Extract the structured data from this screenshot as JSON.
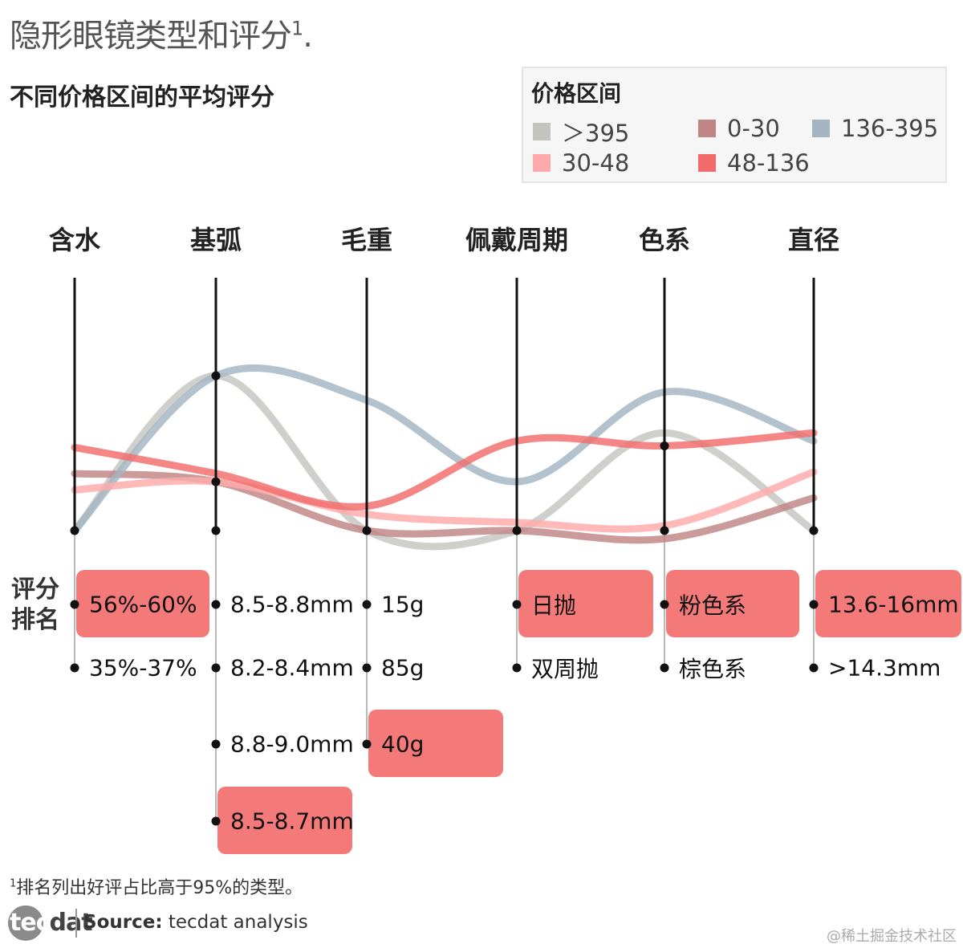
{
  "header": {
    "title": "隐形眼镜类型和评分",
    "title_sup": "1",
    "title_suffix": ".",
    "subtitle": "不同价格区间的平均评分"
  },
  "legend": {
    "title": "价格区间",
    "items": [
      {
        "label": "＞395",
        "color": "#c4c4bf"
      },
      {
        "label": "0-30",
        "color": "#bf8585"
      },
      {
        "label": "136-395",
        "color": "#a4b4c2"
      },
      {
        "label": "30-48",
        "color": "#ffaaaa"
      },
      {
        "label": "48-136",
        "color": "#f26b6b"
      }
    ]
  },
  "rank_label_line1": "评分",
  "rank_label_line2": "排名",
  "chart_data": {
    "type": "line",
    "axes": [
      {
        "name": "含水",
        "categories": [
          {
            "label": "56%-60%",
            "rank": 1,
            "highlight": true
          },
          {
            "label": "35%-37%",
            "rank": 2,
            "highlight": false
          }
        ]
      },
      {
        "name": "基弧",
        "categories": [
          {
            "label": "8.5-8.8mm",
            "rank": 1,
            "highlight": false
          },
          {
            "label": "8.2-8.4mm",
            "rank": 2,
            "highlight": false
          },
          {
            "label": "8.8-9.0mm",
            "rank": 3,
            "highlight": false
          },
          {
            "label": "8.5-8.7mm",
            "rank": 4,
            "highlight": true
          }
        ]
      },
      {
        "name": "毛重",
        "categories": [
          {
            "label": "15g",
            "rank": 1,
            "highlight": false
          },
          {
            "label": "85g",
            "rank": 2,
            "highlight": false
          },
          {
            "label": "40g",
            "rank": 3,
            "highlight": true
          }
        ]
      },
      {
        "name": "佩戴周期",
        "categories": [
          {
            "label": "日抛",
            "rank": 1,
            "highlight": true
          },
          {
            "label": "双周抛",
            "rank": 2,
            "highlight": false
          }
        ]
      },
      {
        "name": "色系",
        "categories": [
          {
            "label": "粉色系",
            "rank": 1,
            "highlight": true
          },
          {
            "label": "棕色系",
            "rank": 2,
            "highlight": false
          }
        ]
      },
      {
        "name": "直径",
        "categories": [
          {
            "label": "13.6-16mm",
            "rank": 1,
            "highlight": true
          },
          {
            "label": ">14.3mm",
            "rank": 2,
            "highlight": false
          }
        ]
      }
    ],
    "series": [
      {
        "name": "＞395",
        "color": "#c4c4bf",
        "values": [
          0.0,
          0.95,
          0.0,
          0.0,
          0.6,
          0.0
        ]
      },
      {
        "name": "0-30",
        "color": "#bf8585",
        "values": [
          0.35,
          0.3,
          0.0,
          0.0,
          -0.05,
          0.2
        ]
      },
      {
        "name": "136-395",
        "color": "#a4b4c2",
        "values": [
          0.0,
          0.95,
          0.8,
          0.3,
          0.85,
          0.55
        ]
      },
      {
        "name": "30-48",
        "color": "#ffaaaa",
        "values": [
          0.25,
          0.3,
          0.1,
          0.05,
          0.03,
          0.36
        ]
      },
      {
        "name": "48-136",
        "color": "#f26b6b",
        "values": [
          0.51,
          0.35,
          0.15,
          0.55,
          0.52,
          0.6
        ]
      }
    ],
    "ylim": [
      0,
      1
    ],
    "grid": false,
    "legend_position": "top-right"
  },
  "footnote": {
    "sup": "1",
    "text": "排名列出好评占比高于95%的类型。"
  },
  "footer": {
    "logo_a": "tec",
    "logo_b": "dat",
    "source_label": "Source:",
    "source_text": " tecdat analysis",
    "watermark": "@稀土掘金技术社区"
  }
}
